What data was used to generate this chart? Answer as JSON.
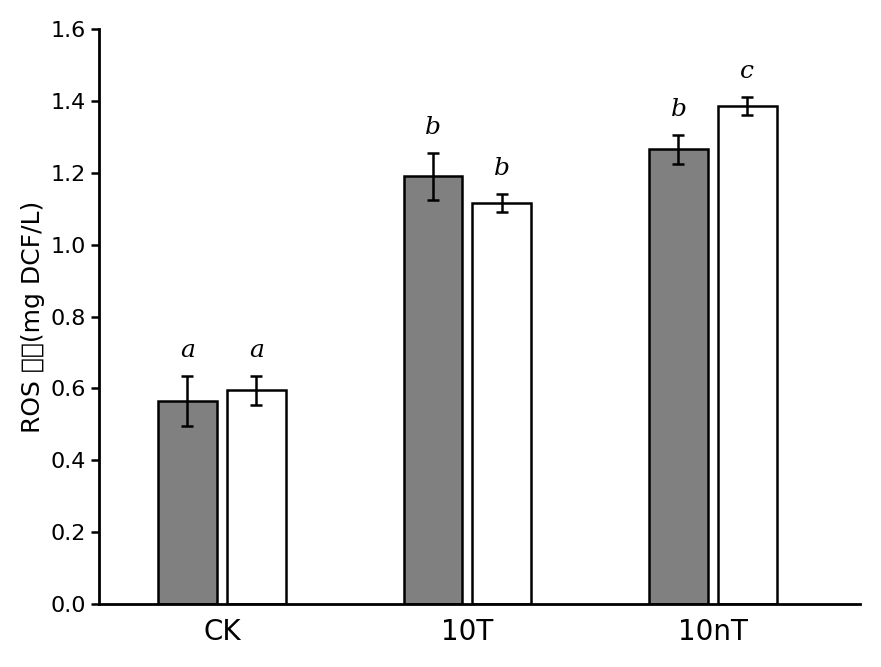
{
  "categories": [
    "CK",
    "10T",
    "10nT"
  ],
  "series1_values": [
    0.565,
    1.19,
    1.265
  ],
  "series2_values": [
    0.595,
    1.115,
    1.385
  ],
  "series1_errors": [
    0.07,
    0.065,
    0.04
  ],
  "series2_errors": [
    0.04,
    0.025,
    0.025
  ],
  "series1_color": "#808080",
  "series2_color": "#ffffff",
  "bar_edge_color": "#000000",
  "bar_width": 0.12,
  "group_positions": [
    0.25,
    0.75,
    1.25
  ],
  "bar_gap": 0.14,
  "ylabel": "ROS 含量(mg DCF/L)",
  "ylim": [
    0.0,
    1.6
  ],
  "yticks": [
    0.0,
    0.2,
    0.4,
    0.6,
    0.8,
    1.0,
    1.2,
    1.4,
    1.6
  ],
  "significance_labels_s1": [
    "a",
    "b",
    "b"
  ],
  "significance_labels_s2": [
    "a",
    "b",
    "c"
  ],
  "sig_fontsize": 18,
  "ylabel_fontsize": 18,
  "tick_fontsize": 16,
  "xtick_fontsize": 20,
  "background_color": "#ffffff",
  "error_capsize": 4,
  "error_linewidth": 1.8,
  "bar_linewidth": 1.8,
  "xlim": [
    0.0,
    1.55
  ]
}
